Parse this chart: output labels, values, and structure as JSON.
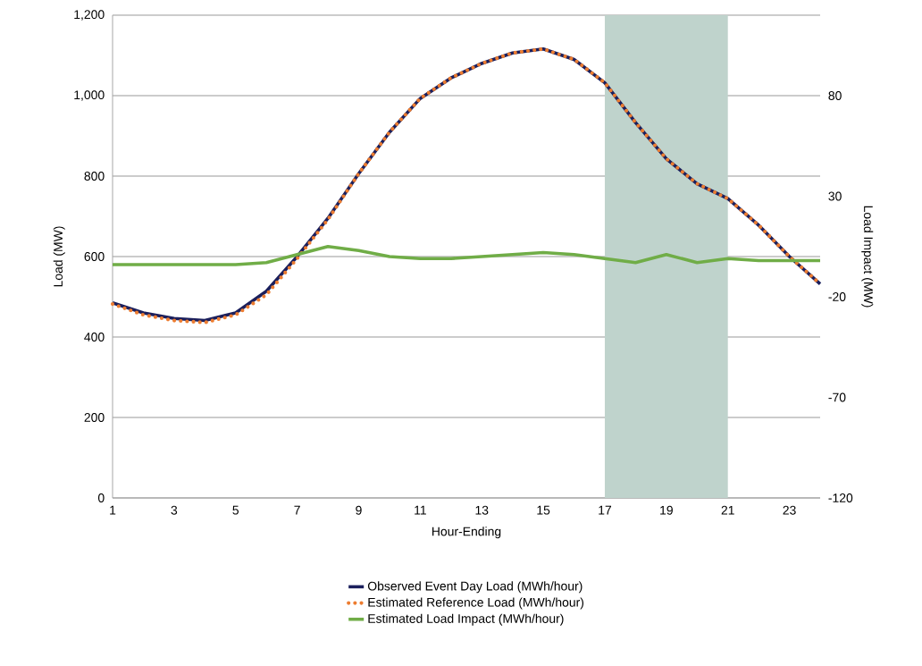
{
  "chart_data": {
    "type": "line",
    "xlabel": "Hour-Ending",
    "ylabel": "Load (MW)",
    "y2label": "Load Impact (MW)",
    "x": [
      1,
      2,
      3,
      4,
      5,
      6,
      7,
      8,
      9,
      10,
      11,
      12,
      13,
      14,
      15,
      16,
      17,
      18,
      19,
      20,
      21,
      22,
      23,
      24
    ],
    "xlim": [
      1,
      24
    ],
    "xticks": [
      1,
      3,
      5,
      7,
      9,
      11,
      13,
      15,
      17,
      19,
      21,
      23
    ],
    "ylim": [
      0,
      1200
    ],
    "yticks": [
      0,
      200,
      400,
      600,
      800,
      {
        "value": 1000,
        "label": "1,000"
      },
      {
        "value": 1200,
        "label": "1,200"
      }
    ],
    "y2lim": [
      -120,
      120
    ],
    "y2ticks": [
      -120,
      -70,
      -20,
      30,
      80
    ],
    "grid": "y",
    "legend": "bottom",
    "bands": [
      {
        "axis": "x",
        "from": 17,
        "to": 21,
        "color": "#bfd3cc"
      }
    ],
    "series": [
      {
        "name": "Observed Event Day Load (MWh/hour)",
        "color": "#1b1f5c",
        "line_style": "solid",
        "values": [
          485,
          460,
          446,
          441,
          460,
          514,
          600,
          695,
          806,
          909,
          993,
          1044,
          1080,
          1106,
          1116,
          1090,
          1032,
          933,
          843,
          781,
          744,
          678,
          600,
          532
        ]
      },
      {
        "name": "Estimated Reference Load (MWh/hour)",
        "color": "#ed7d31",
        "line_style": "dotted",
        "values": [
          482,
          455,
          441,
          436,
          455,
          505,
          595,
          692,
          806,
          909,
          993,
          1044,
          1080,
          1106,
          1116,
          1090,
          1032,
          933,
          843,
          781,
          744,
          678,
          600,
          532
        ]
      },
      {
        "name": "Estimated Load Impact (MWh/hour)",
        "color": "#70ad47",
        "line_style": "solid",
        "axis": "y2",
        "values": [
          -4,
          -4,
          -4,
          -4,
          -4,
          -3,
          1,
          5,
          3,
          0,
          -1,
          -1,
          0,
          1,
          2,
          1,
          -1,
          -3,
          1,
          -3,
          -1,
          -2,
          -2,
          -2
        ]
      }
    ]
  }
}
